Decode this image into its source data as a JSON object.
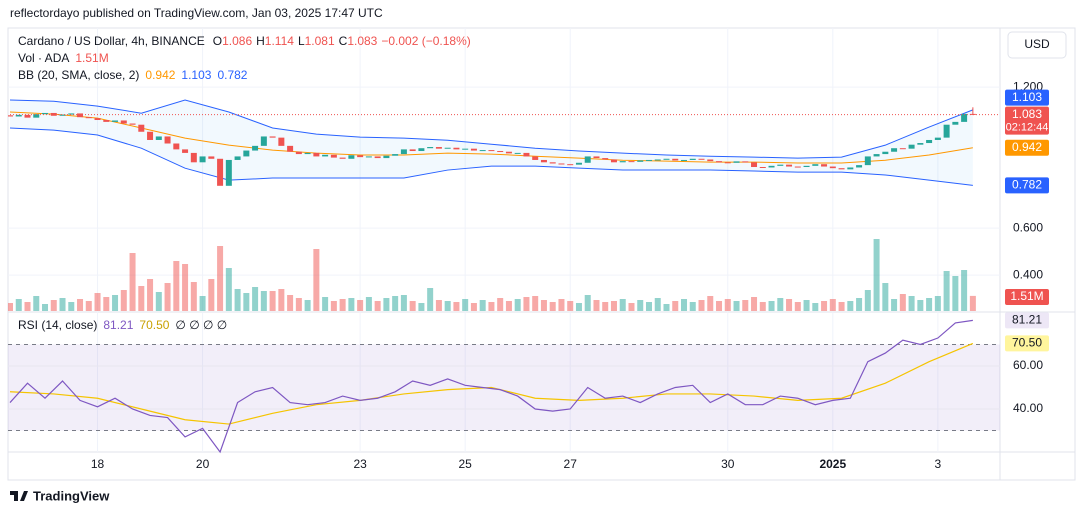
{
  "header": {
    "publisher": "reflectordayo published on TradingView.com, Jan 03, 2025 17:47 UTC",
    "brand": "TradingView",
    "currency": "USD"
  },
  "chart_data": [
    {
      "type": "candlestick",
      "title": "Cardano / US Dollar, 4h, BINANCE",
      "ohlc_letters": [
        "O",
        "H",
        "L",
        "C"
      ],
      "open": [
        1.08,
        1.075,
        1.082,
        1.07,
        1.085,
        1.09,
        1.078,
        1.083,
        1.088,
        1.072,
        1.068,
        1.06,
        1.052,
        1.058,
        1.045,
        1.04,
        1.01,
        0.975,
        0.99,
        0.96,
        0.935,
        0.92,
        0.88,
        0.905,
        0.895,
        0.78,
        0.89,
        0.905,
        0.93,
        0.95,
        0.99,
        0.985,
        0.95,
        0.925,
        0.915,
        0.92,
        0.905,
        0.912,
        0.9,
        0.895,
        0.91,
        0.902,
        0.905,
        0.898,
        0.908,
        0.915,
        0.935,
        0.928,
        0.94,
        0.945,
        0.938,
        0.942,
        0.935,
        0.938,
        0.93,
        0.932,
        0.928,
        0.925,
        0.918,
        0.92,
        0.905,
        0.89,
        0.88,
        0.875,
        0.872,
        0.87,
        0.878,
        0.905,
        0.898,
        0.892,
        0.88,
        0.885,
        0.882,
        0.888,
        0.89,
        0.892,
        0.895,
        0.888,
        0.89,
        0.895,
        0.892,
        0.885,
        0.88,
        0.878,
        0.884,
        0.88,
        0.86,
        0.858,
        0.865,
        0.87,
        0.862,
        0.86,
        0.865,
        0.872,
        0.862,
        0.855,
        0.85,
        0.858,
        0.868,
        0.905,
        0.915,
        0.925,
        0.94,
        0.938,
        0.955,
        0.962,
        0.975,
        0.985,
        1.04,
        1.052,
        1.086
      ],
      "close": [
        1.075,
        1.082,
        1.07,
        1.085,
        1.09,
        1.078,
        1.083,
        1.088,
        1.072,
        1.068,
        1.06,
        1.052,
        1.058,
        1.045,
        1.04,
        1.01,
        0.975,
        0.99,
        0.96,
        0.935,
        0.92,
        0.88,
        0.905,
        0.895,
        0.78,
        0.89,
        0.905,
        0.93,
        0.95,
        0.99,
        0.985,
        0.95,
        0.925,
        0.915,
        0.92,
        0.905,
        0.912,
        0.9,
        0.895,
        0.91,
        0.902,
        0.905,
        0.898,
        0.908,
        0.915,
        0.935,
        0.928,
        0.94,
        0.945,
        0.938,
        0.942,
        0.935,
        0.938,
        0.93,
        0.932,
        0.928,
        0.925,
        0.918,
        0.92,
        0.905,
        0.89,
        0.88,
        0.875,
        0.872,
        0.87,
        0.878,
        0.905,
        0.898,
        0.892,
        0.88,
        0.885,
        0.882,
        0.888,
        0.89,
        0.892,
        0.895,
        0.888,
        0.89,
        0.895,
        0.892,
        0.885,
        0.88,
        0.878,
        0.884,
        0.88,
        0.86,
        0.858,
        0.865,
        0.87,
        0.862,
        0.86,
        0.865,
        0.872,
        0.862,
        0.855,
        0.85,
        0.858,
        0.868,
        0.905,
        0.915,
        0.925,
        0.94,
        0.938,
        0.955,
        0.962,
        0.975,
        0.985,
        1.04,
        1.052,
        1.086,
        1.083
      ],
      "last_high": 1.114,
      "last_low": 1.081,
      "change_label": "−0.002 (−0.18%)",
      "countdown": "02:12:44",
      "up_color": "#26a69a",
      "down_color": "#ef5350",
      "xlim": [
        0,
        113.1
      ],
      "xticks": [
        {
          "value": 10,
          "label": "18"
        },
        {
          "value": 22,
          "label": "20"
        },
        {
          "value": 40,
          "label": "23"
        },
        {
          "value": 52,
          "label": "25"
        },
        {
          "value": 64,
          "label": "27"
        },
        {
          "value": 82,
          "label": "30"
        },
        {
          "value": 94,
          "label": "2025"
        },
        {
          "value": 106,
          "label": "3"
        }
      ],
      "ylim": [
        0.243,
        1.443
      ],
      "yticks": [
        {
          "value": 1.2,
          "label": "1.200"
        },
        {
          "value": 0.6,
          "label": "0.600"
        },
        {
          "value": 0.4,
          "label": "0.400"
        }
      ],
      "grid": true,
      "bollinger": {
        "name": "BB (20, SMA, close, 2)",
        "x": [
          0,
          5,
          10,
          15,
          20,
          25,
          30,
          35,
          40,
          45,
          50,
          55,
          60,
          65,
          70,
          75,
          80,
          85,
          90,
          95,
          100,
          105,
          110
        ],
        "series": [
          {
            "color": "#ff9800",
            "values": [
              1.094,
              1.085,
              1.068,
              1.026,
              0.983,
              0.953,
              0.932,
              0.919,
              0.911,
              0.911,
              0.919,
              0.915,
              0.906,
              0.898,
              0.889,
              0.885,
              0.881,
              0.881,
              0.877,
              0.877,
              0.889,
              0.911,
              0.942
            ]
          },
          {
            "color": "#2962ff",
            "values": [
              1.145,
              1.14,
              1.119,
              1.089,
              1.145,
              1.094,
              1.026,
              1.0,
              0.987,
              0.983,
              0.974,
              0.957,
              0.94,
              0.928,
              0.919,
              0.911,
              0.906,
              0.902,
              0.898,
              0.902,
              0.953,
              1.03,
              1.103
            ]
          },
          {
            "color": "#2962ff",
            "values": [
              1.026,
              1.017,
              0.996,
              0.94,
              0.855,
              0.804,
              0.813,
              0.813,
              0.813,
              0.813,
              0.847,
              0.864,
              0.864,
              0.855,
              0.847,
              0.847,
              0.847,
              0.843,
              0.838,
              0.838,
              0.826,
              0.804,
              0.782
            ]
          }
        ]
      },
      "volume": {
        "name": "Vol · ADA",
        "ylim": [
          0,
          8.5
        ],
        "last_label": "1.51M",
        "values": [
          0.8,
          1.2,
          0.9,
          1.5,
          0.7,
          1.1,
          1.3,
          0.9,
          1.2,
          1.0,
          1.8,
          1.4,
          1.6,
          2.1,
          5.8,
          2.5,
          3.2,
          1.9,
          2.8,
          5.0,
          4.7,
          2.9,
          1.5,
          3.2,
          6.5,
          4.3,
          2.2,
          1.8,
          2.4,
          2.0,
          2.0,
          2.2,
          1.6,
          1.3,
          1.1,
          6.2,
          1.4,
          1.0,
          1.2,
          1.3,
          1.1,
          1.4,
          1.0,
          1.3,
          1.5,
          1.6,
          1.0,
          0.8,
          2.3,
          1.1,
          1.0,
          0.9,
          1.2,
          0.8,
          1.1,
          0.9,
          1.3,
          1.0,
          1.2,
          1.4,
          1.5,
          1.1,
          0.9,
          1.2,
          1.0,
          0.8,
          1.6,
          1.1,
          0.9,
          1.0,
          1.2,
          0.8,
          1.1,
          0.9,
          1.3,
          0.7,
          1.0,
          1.2,
          0.9,
          1.1,
          1.5,
          1.0,
          1.2,
          1.0,
          1.1,
          1.4,
          0.9,
          1.0,
          1.3,
          1.2,
          0.9,
          1.1,
          0.8,
          1.0,
          1.2,
          0.9,
          1.0,
          1.3,
          2.1,
          7.2,
          2.8,
          1.2,
          1.7,
          1.5,
          1.1,
          1.3,
          1.5,
          4.0,
          3.5,
          4.1,
          1.51
        ]
      }
    },
    {
      "type": "line",
      "title": "RSI (14, close)",
      "extra_label": "∅ ∅ ∅ ∅",
      "xlim": [
        0,
        113.1
      ],
      "ylim": [
        20,
        85.1
      ],
      "yticks": [
        {
          "value": 60,
          "label": "60.00"
        },
        {
          "value": 40,
          "label": "40.00"
        }
      ],
      "bands": [
        30,
        70
      ],
      "band_color": "#7e57c2",
      "series": [
        {
          "color": "#7e57c2",
          "x": [
            0,
            2,
            4,
            6,
            8,
            10,
            12,
            14,
            16,
            18,
            20,
            22,
            24,
            26,
            28,
            30,
            32,
            34,
            36,
            38,
            40,
            42,
            44,
            46,
            48,
            50,
            52,
            54,
            56,
            58,
            60,
            62,
            64,
            66,
            68,
            70,
            72,
            74,
            76,
            78,
            80,
            82,
            84,
            86,
            88,
            90,
            92,
            94,
            96,
            98,
            100,
            102,
            104,
            106,
            108,
            110
          ],
          "values": [
            43,
            52,
            45,
            53,
            44,
            41,
            45,
            40,
            37,
            36,
            27,
            31,
            20,
            43,
            48,
            50,
            43,
            42,
            43,
            46,
            44,
            45,
            48,
            53,
            51,
            54,
            51,
            50,
            49,
            46,
            40,
            39,
            40,
            50,
            45,
            46,
            43,
            47,
            50,
            51,
            43,
            47,
            42,
            42,
            46,
            45,
            42,
            44,
            45,
            62,
            66,
            72,
            70,
            73,
            80,
            81.21
          ]
        },
        {
          "color": "#f5c400",
          "last_label": "70.50",
          "x": [
            0,
            5,
            10,
            15,
            20,
            25,
            30,
            35,
            40,
            45,
            50,
            55,
            60,
            65,
            70,
            75,
            80,
            85,
            90,
            95,
            100,
            105,
            110
          ],
          "values": [
            48,
            47,
            45,
            40,
            35,
            33,
            38,
            42,
            44,
            47,
            49,
            50,
            45,
            44,
            45,
            47,
            47,
            46,
            44,
            45,
            52,
            62,
            70.5
          ]
        }
      ]
    }
  ]
}
